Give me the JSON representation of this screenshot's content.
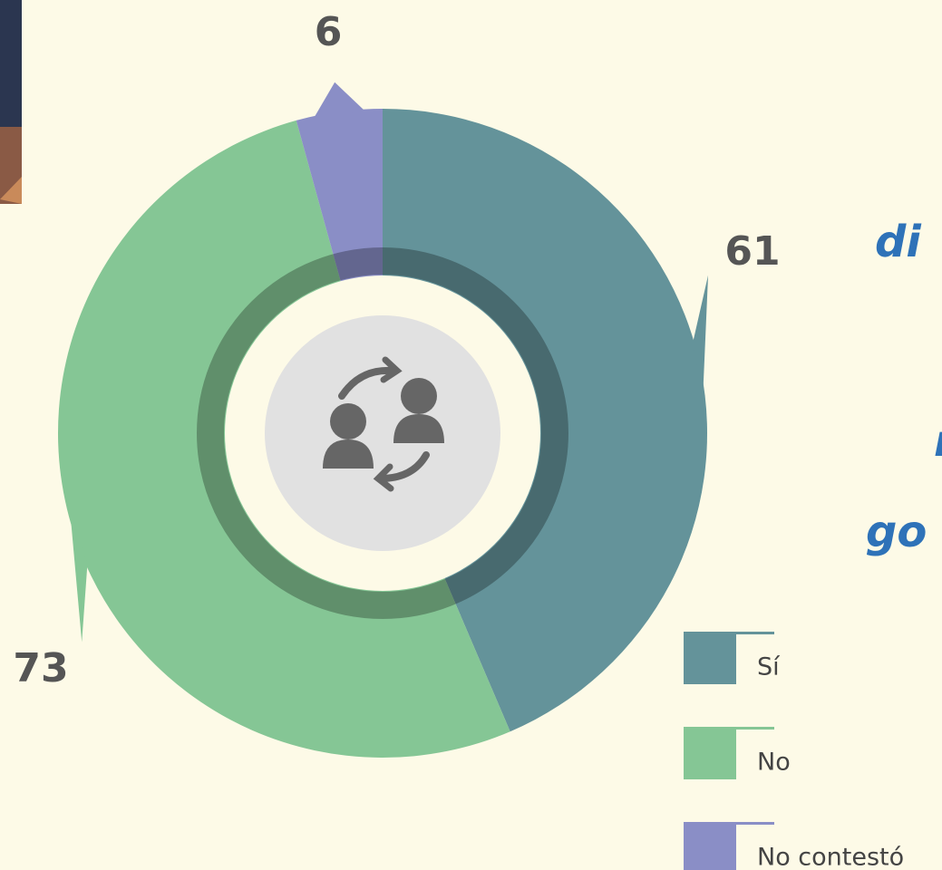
{
  "chart_data": {
    "type": "pie",
    "categories": [
      "Sí",
      "No",
      "No contestó"
    ],
    "values": [
      61,
      73,
      6
    ],
    "colors": [
      "#64939a",
      "#85c695",
      "#8a8ec6"
    ],
    "legend": "bottom-right"
  },
  "cropped_text": [
    "di",
    "r",
    "go"
  ]
}
